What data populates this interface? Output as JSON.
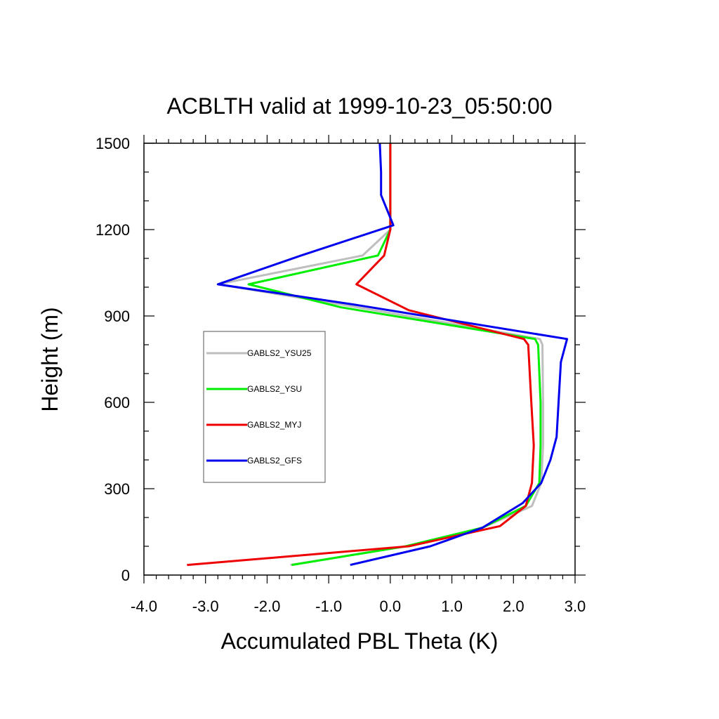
{
  "chart_data": {
    "type": "line",
    "title": "ACBLTH valid at 1999-10-23_05:50:00",
    "xlabel": "Accumulated PBL Theta (K)",
    "ylabel": "Height (m)",
    "xlim": [
      -4.0,
      3.0
    ],
    "ylim": [
      0,
      1500
    ],
    "xticks": [
      "-4.0",
      "-3.0",
      "-2.0",
      "-1.0",
      "0.0",
      "1.0",
      "2.0",
      "3.0"
    ],
    "yticks": [
      "0",
      "300",
      "600",
      "900",
      "1200",
      "1500"
    ],
    "grid": false,
    "legend_position": "left-center",
    "series": [
      {
        "name": "GABLS2_YSU25",
        "color": "#bebebe",
        "x": [
          -1.62,
          0.25,
          1.5,
          2.3,
          2.45,
          2.48,
          2.48,
          2.47,
          2.43,
          -0.8,
          -2.8,
          -0.45,
          0.0,
          0.0,
          0.0
        ],
        "y": [
          35,
          100,
          165,
          240,
          320,
          450,
          600,
          800,
          820,
          940,
          1010,
          1110,
          1200,
          1300,
          1500
        ]
      },
      {
        "name": "GABLS2_YSU",
        "color": "#00ee00",
        "x": [
          -1.6,
          0.25,
          1.5,
          2.2,
          2.42,
          2.44,
          2.44,
          2.4,
          2.35,
          -0.8,
          -2.3,
          -0.2,
          0.0,
          0.0,
          0.0
        ],
        "y": [
          35,
          100,
          165,
          240,
          320,
          450,
          600,
          800,
          820,
          930,
          1010,
          1110,
          1200,
          1300,
          1500
        ]
      },
      {
        "name": "GABLS2_MYJ",
        "color": "#ee0000",
        "x": [
          -3.3,
          0.3,
          1.78,
          2.2,
          2.3,
          2.33,
          2.29,
          2.24,
          2.17,
          0.3,
          -0.55,
          -0.1,
          0.0,
          0.0,
          0.0
        ],
        "y": [
          35,
          100,
          170,
          240,
          320,
          450,
          600,
          800,
          820,
          920,
          1010,
          1110,
          1200,
          1300,
          1500
        ]
      },
      {
        "name": "GABLS2_GFS",
        "color": "#0000ee",
        "x": [
          -0.65,
          0.65,
          1.5,
          2.15,
          2.45,
          2.6,
          2.7,
          2.77,
          2.87,
          -0.6,
          -2.8,
          -1.45,
          0.05,
          -0.15,
          -0.15,
          -0.17
        ],
        "y": [
          35,
          100,
          165,
          250,
          320,
          400,
          480,
          740,
          820,
          940,
          1010,
          1110,
          1215,
          1320,
          1400,
          1500
        ]
      }
    ]
  }
}
